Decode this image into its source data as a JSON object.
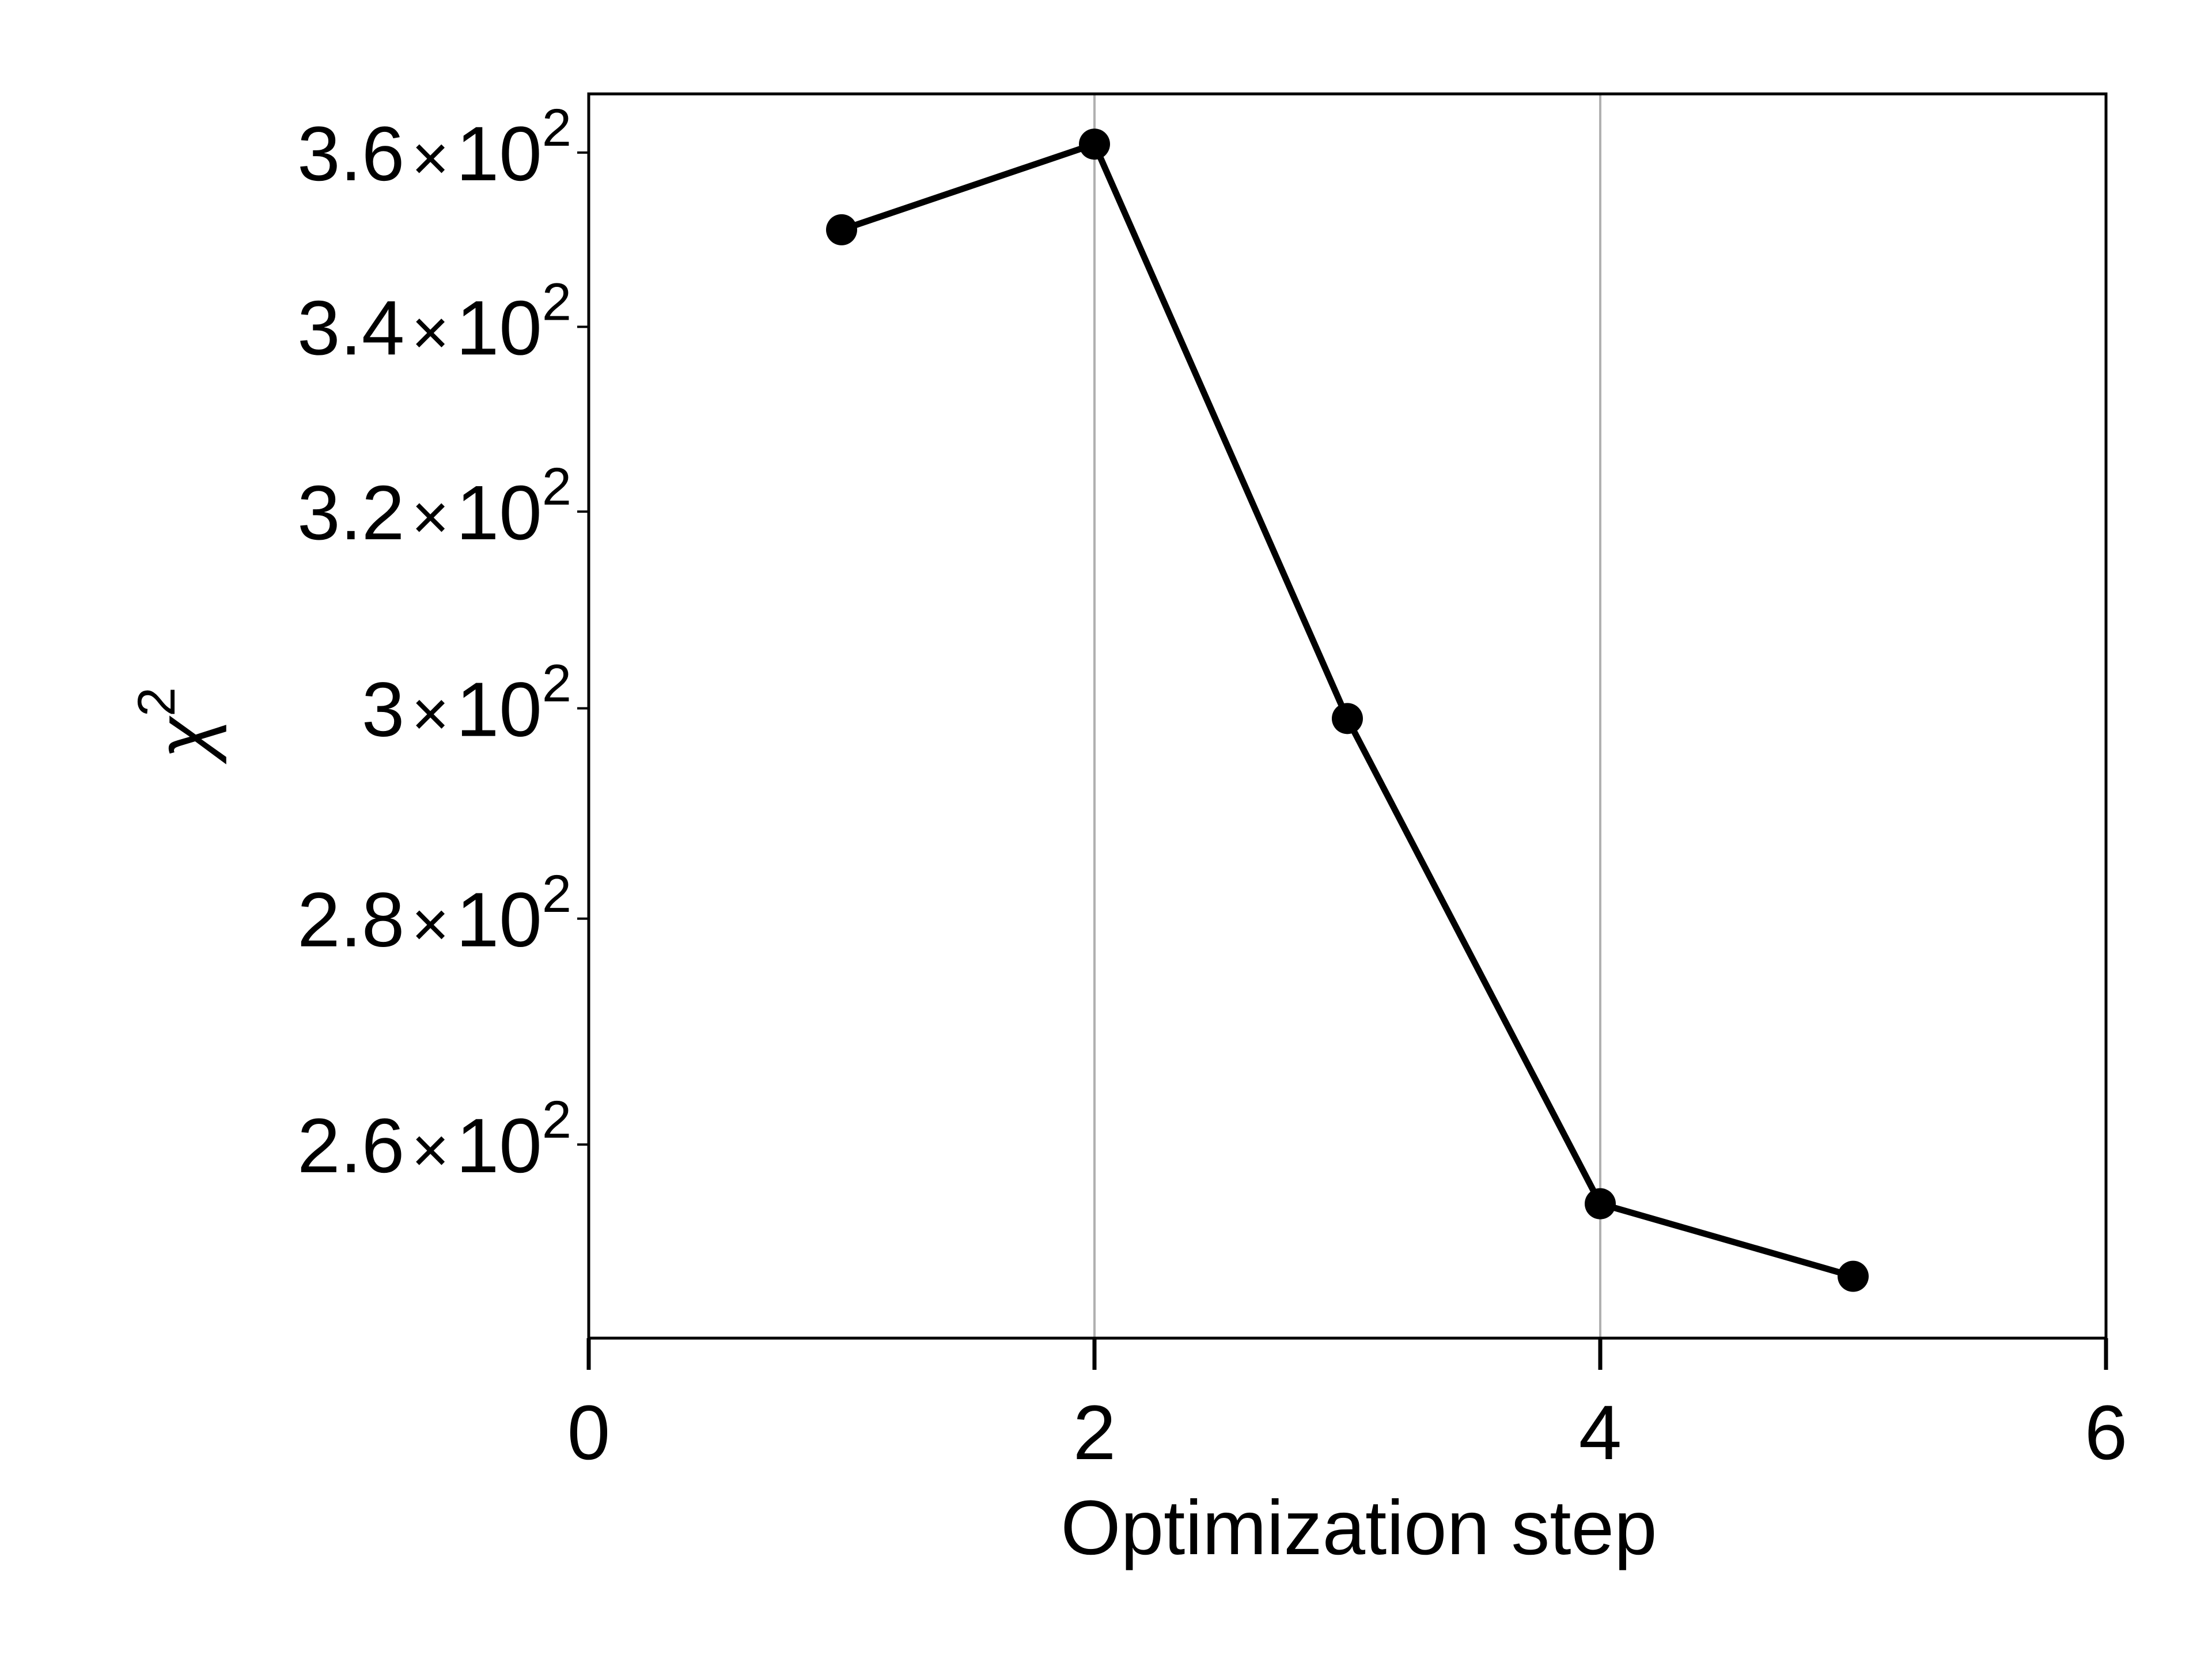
{
  "chart_data": {
    "type": "line",
    "title": "",
    "xlabel": "Optimization step",
    "ylabel": "χ",
    "ylabel_superscript": "2",
    "x_scale": "linear",
    "y_scale": "log",
    "xlim": [
      0,
      6
    ],
    "ylim": [
      244,
      367
    ],
    "x_ticks": [
      0,
      2,
      4,
      6
    ],
    "x_tick_labels": [
      "0",
      "2",
      "4",
      "6"
    ],
    "y_ticks": [
      {
        "value": 360,
        "mantissa": "3.6",
        "base": "10",
        "exponent": "2"
      },
      {
        "value": 340,
        "mantissa": "3.4",
        "base": "10",
        "exponent": "2"
      },
      {
        "value": 320,
        "mantissa": "3.2",
        "base": "10",
        "exponent": "2"
      },
      {
        "value": 300,
        "mantissa": "3",
        "base": "10",
        "exponent": "2"
      },
      {
        "value": 280,
        "mantissa": "2.8",
        "base": "10",
        "exponent": "2"
      },
      {
        "value": 260,
        "mantissa": "2.6",
        "base": "10",
        "exponent": "2"
      }
    ],
    "times_symbol": "×",
    "grid": "vertical major lines on x axis",
    "series": [
      {
        "color": "#000000",
        "marker": "circle",
        "x": [
          1,
          2,
          3,
          4,
          5
        ],
        "y": [
          351,
          361,
          299,
          255,
          249
        ]
      }
    ]
  }
}
